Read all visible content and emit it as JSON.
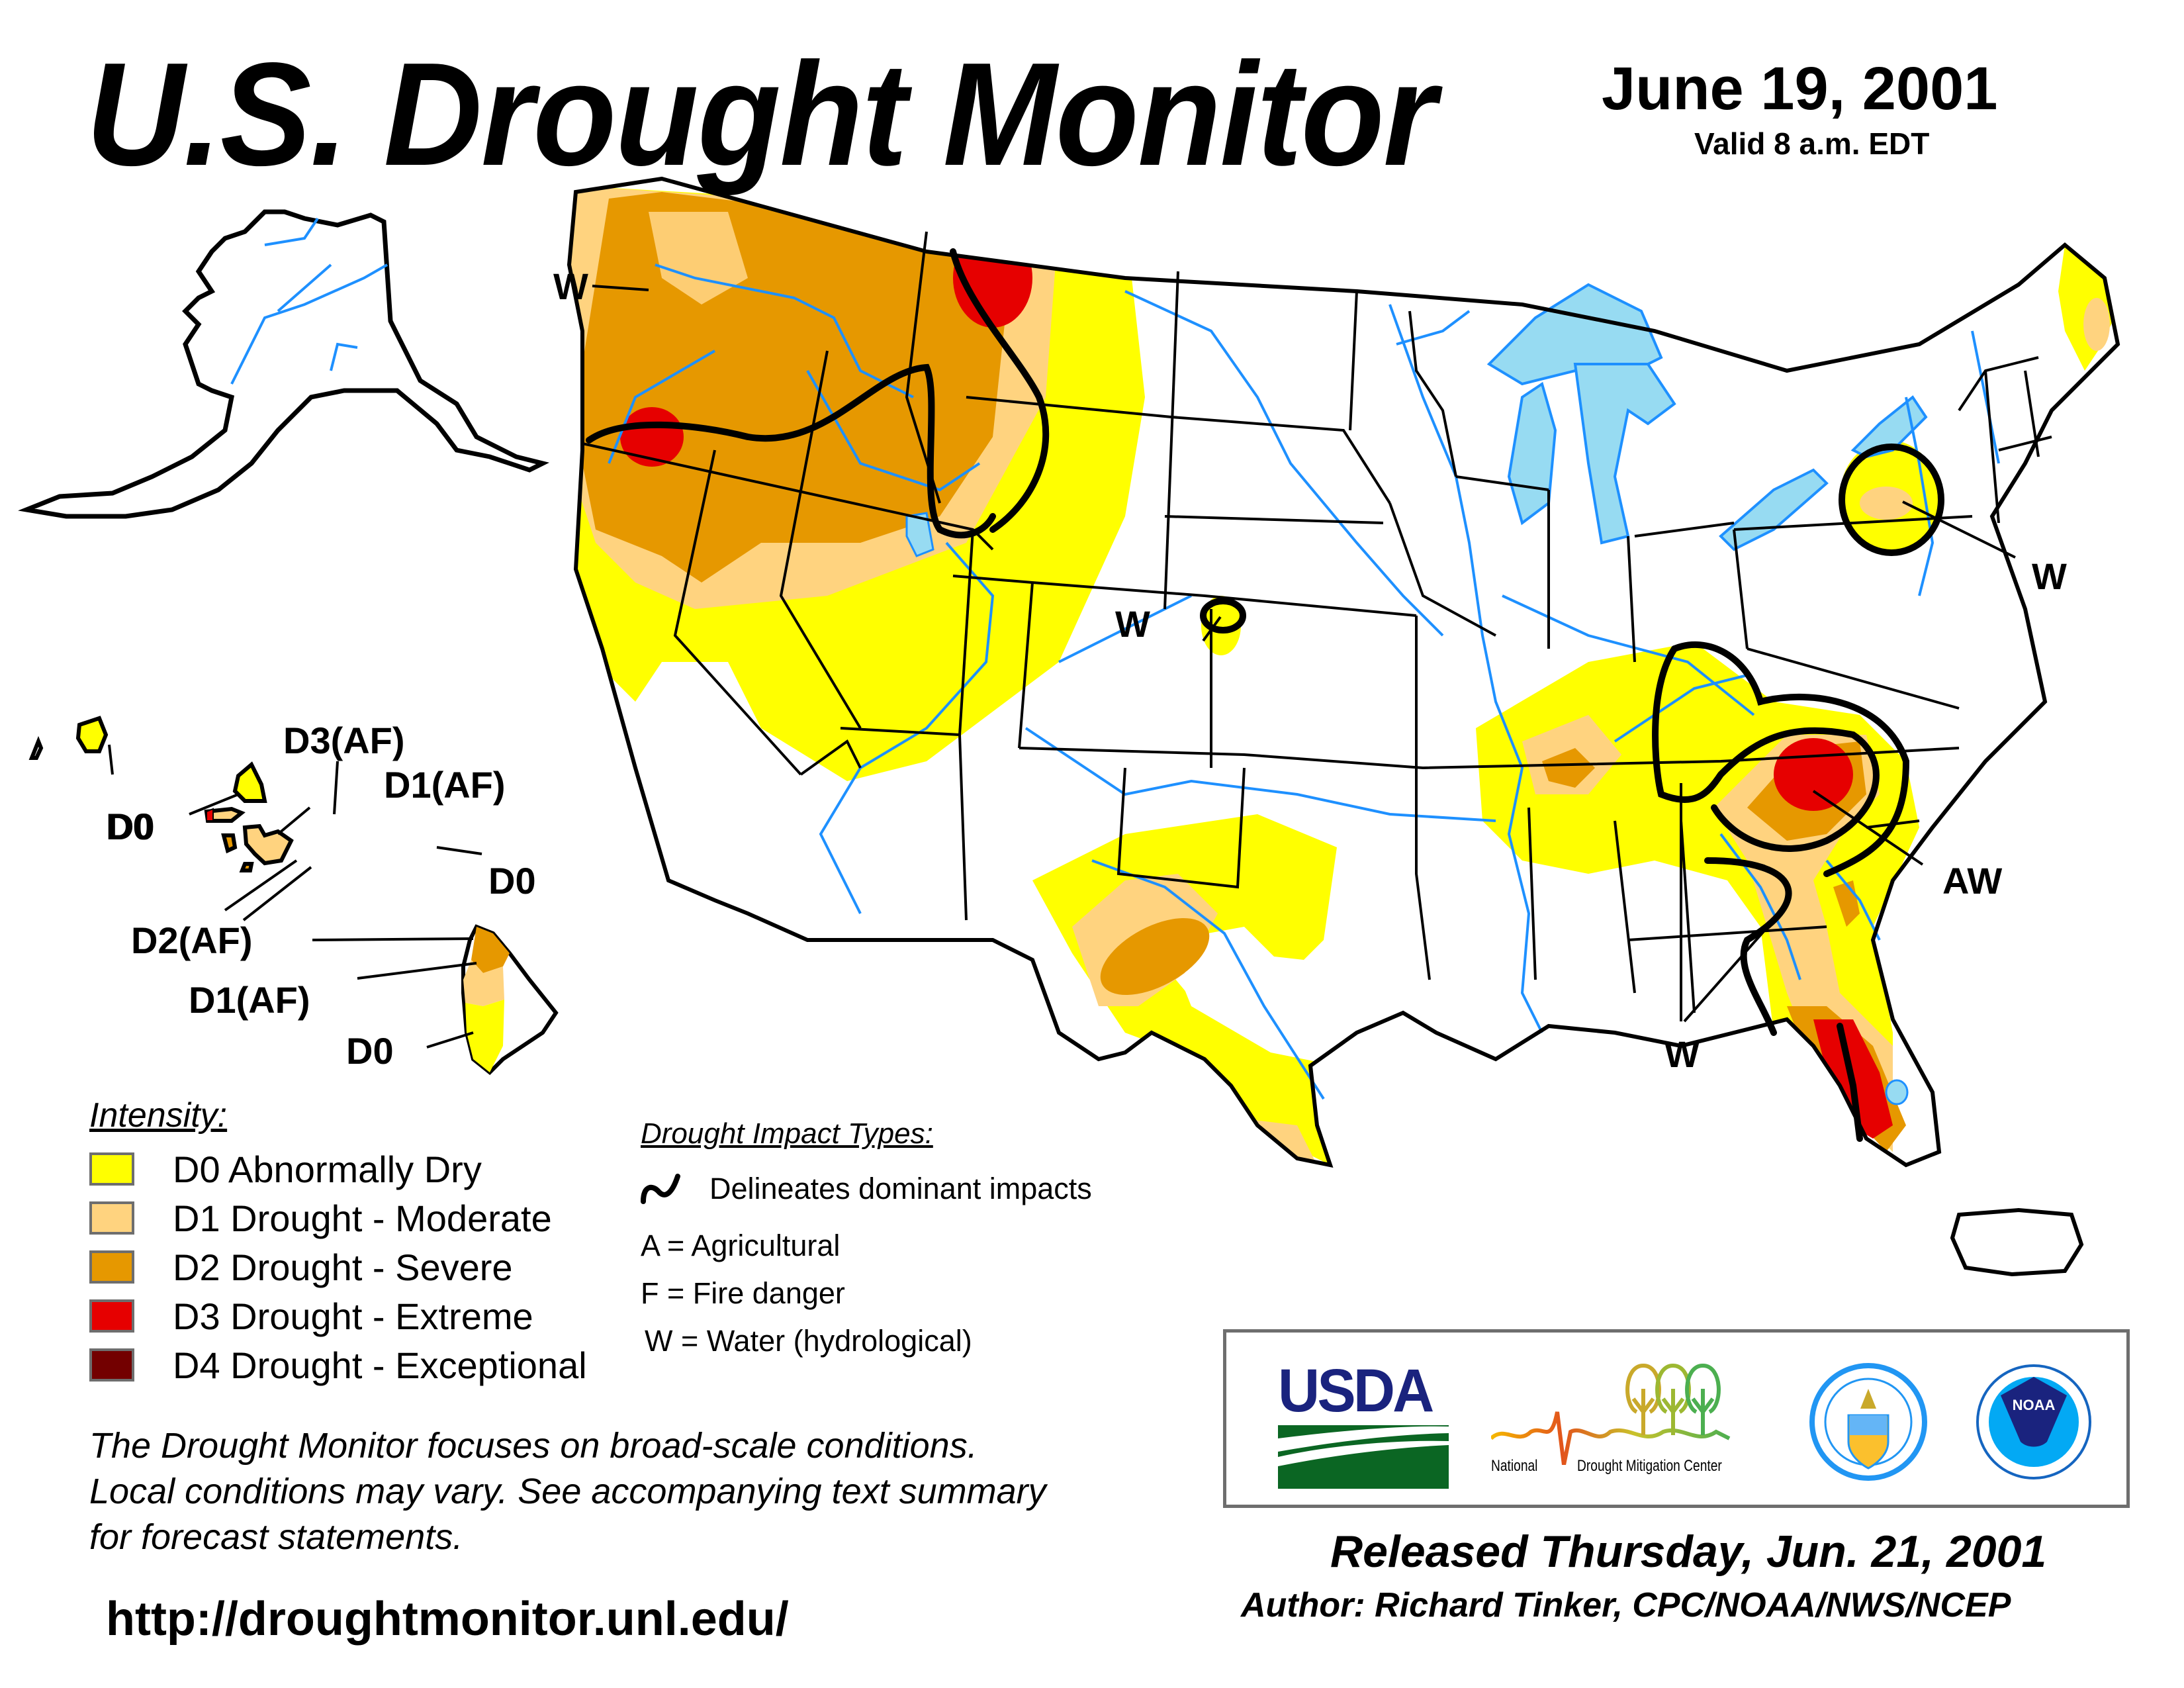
{
  "header": {
    "title": "U.S. Drought Monitor",
    "date": "June 19, 2001",
    "valid": "Valid 8 a.m. EDT"
  },
  "colors": {
    "D0": "#FFFF00",
    "D1": "#FFD37F",
    "D2": "#E69800",
    "D3": "#E60000",
    "D4": "#730000",
    "water": "#97DBF2",
    "river": "#1E90FF",
    "county": "#B2B2B2"
  },
  "map_labels": {
    "nw_w": "W",
    "colorado_w": "W",
    "northeast_w": "W",
    "southeast_aw": "AW",
    "southeast_w": "W"
  },
  "hawaii_labels": {
    "kauai": "D0",
    "oahu": "D0",
    "molokai": "D3(AF)",
    "maui_west": "D1(AF)",
    "maui_east": "D0",
    "lanai_kahoolawe": "D2(AF)",
    "big_island_north": "D1(AF)",
    "big_island_south": "D0"
  },
  "intensity_legend": {
    "title": "Intensity:",
    "items": [
      {
        "label": "D0 Abnormally Dry",
        "color": "#FFFF00"
      },
      {
        "label": "D1 Drought - Moderate",
        "color": "#FFD37F"
      },
      {
        "label": "D2 Drought - Severe",
        "color": "#E69800"
      },
      {
        "label": "D3 Drought - Extreme",
        "color": "#E60000"
      },
      {
        "label": "D4 Drought - Exceptional",
        "color": "#730000"
      }
    ]
  },
  "impact_legend": {
    "title": "Drought Impact Types:",
    "line_label": "Delineates dominant impacts",
    "items": [
      "A = Agricultural",
      "F = Fire danger",
      "W = Water (hydrological)"
    ]
  },
  "disclaimer": {
    "lines": [
      "The Drought Monitor focuses on broad-scale conditions.",
      "Local conditions may vary. See accompanying text summary",
      "for forecast statements."
    ]
  },
  "url": "http://droughtmonitor.unl.edu/",
  "logos": {
    "usda": "USDA",
    "ndmc_left": "National",
    "ndmc_right": "Drought Mitigation Center",
    "noaa": "NOAA"
  },
  "footer": {
    "released": "Released Thursday, Jun. 21, 2001",
    "author": "Author: Richard Tinker, CPC/NOAA/NWS/NCEP"
  }
}
